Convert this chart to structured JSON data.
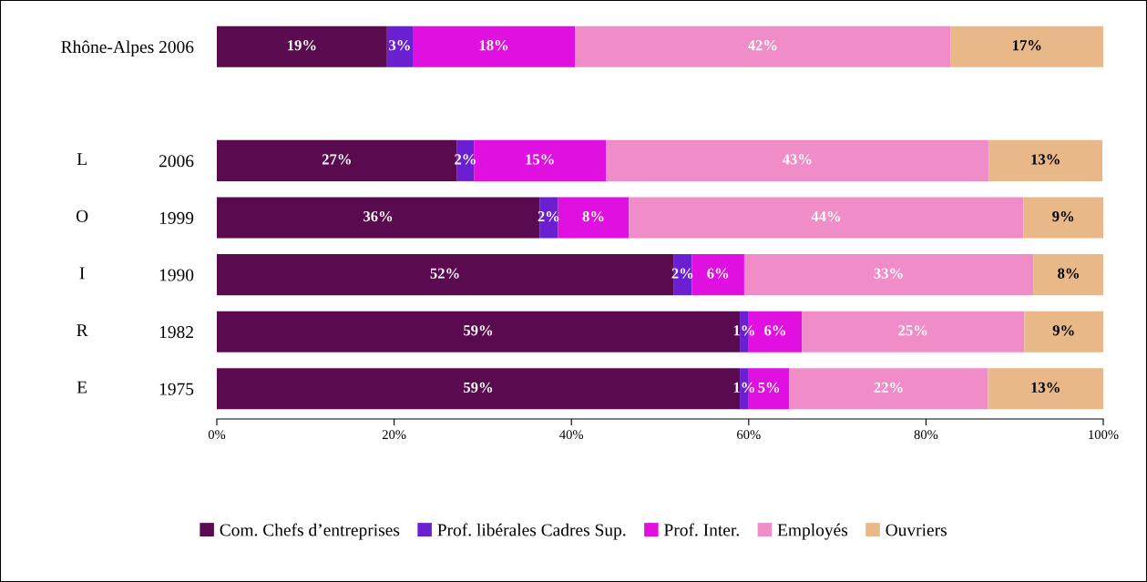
{
  "chart_data": {
    "type": "bar",
    "orientation": "horizontal",
    "stacked": true,
    "categories": [
      "Rhône-Alpes 2006",
      null,
      "2006",
      "1999",
      "1990",
      "1982",
      "1975"
    ],
    "series": [
      {
        "name": "Com. Chefs d’entreprises",
        "color": "#5a0a4e",
        "values": [
          19.2,
          null,
          27.1,
          36.4,
          51.5,
          59.0,
          59.0
        ],
        "value_labels": [
          "19%",
          null,
          "27%",
          "36%",
          "52%",
          "59%",
          "59%"
        ]
      },
      {
        "name": "Prof. libérales Cadres Sup.",
        "color": "#6a1fd0",
        "values": [
          2.9,
          null,
          1.9,
          2.1,
          2.1,
          1.0,
          1.0
        ],
        "value_labels": [
          "3%",
          null,
          "2%",
          "2%",
          "2%",
          "1%",
          "1%"
        ]
      },
      {
        "name": "Prof. Inter.",
        "color": "#e010e0",
        "values": [
          18.3,
          null,
          14.9,
          8.0,
          5.9,
          6.0,
          4.6
        ],
        "value_labels": [
          "18%",
          null,
          "15%",
          "8%",
          "6%",
          "6%",
          "5%"
        ]
      },
      {
        "name": "Employés",
        "color": "#f08cc8",
        "values": [
          42.4,
          null,
          43.2,
          44.5,
          32.6,
          25.1,
          22.4
        ],
        "value_labels": [
          "42%",
          null,
          "43%",
          "44%",
          "33%",
          "25%",
          "22%"
        ]
      },
      {
        "name": "Ouvriers",
        "color": "#e8b888",
        "values": [
          17.2,
          null,
          12.8,
          9.0,
          8.0,
          8.9,
          13.0
        ],
        "value_labels": [
          "17%",
          null,
          "13%",
          "9%",
          "8%",
          "9%",
          "13%"
        ]
      }
    ],
    "xlim": [
      0,
      100
    ],
    "xticks": [
      {
        "value": 0,
        "label": "0%"
      },
      {
        "value": 20,
        "label": "20%"
      },
      {
        "value": 40,
        "label": "40%"
      },
      {
        "value": 60,
        "label": "60%"
      },
      {
        "value": 80,
        "label": "80%"
      },
      {
        "value": 100,
        "label": "100%"
      }
    ],
    "annotations": [
      "L",
      "O",
      "I",
      "R",
      "E"
    ],
    "legend": "bottom",
    "grid": false
  }
}
